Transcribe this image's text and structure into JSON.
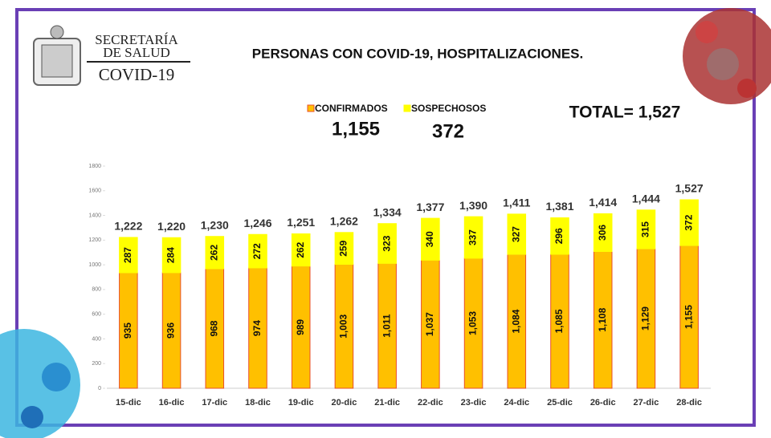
{
  "header": {
    "agency": [
      "SECRETARÍA",
      "DE SALUD"
    ],
    "program": "COVID-19"
  },
  "chart_data": {
    "type": "stacked-bar",
    "title": "PERSONAS CON COVID-19, HOSPITALIZACIONES.",
    "categories": [
      "15-dic",
      "16-dic",
      "17-dic",
      "18-dic",
      "19-dic",
      "20-dic",
      "21-dic",
      "22-dic",
      "23-dic",
      "24-dic",
      "25-dic",
      "26-dic",
      "27-dic",
      "28-dic"
    ],
    "series": [
      {
        "name": "CONFIRMADOS",
        "color": "#FFC000",
        "stroke": "#E8502A",
        "values": [
          935,
          936,
          968,
          974,
          989,
          1003,
          1011,
          1037,
          1053,
          1084,
          1085,
          1108,
          1129,
          1155
        ],
        "value_labels": [
          "935",
          "936",
          "968",
          "974",
          "989",
          "1,003",
          "1,011",
          "1,037",
          "1,053",
          "1,084",
          "1,085",
          "1,108",
          "1,129",
          "1,155"
        ]
      },
      {
        "name": "SOSPECHOSOS",
        "color": "#FFFF00",
        "stroke": "#FFFF00",
        "values": [
          287,
          284,
          262,
          272,
          262,
          259,
          323,
          340,
          337,
          327,
          296,
          306,
          315,
          372
        ]
      }
    ],
    "totals": {
      "values": [
        1222,
        1220,
        1230,
        1246,
        1251,
        1262,
        1334,
        1377,
        1390,
        1411,
        1381,
        1414,
        1444,
        1527
      ],
      "value_labels": [
        "1,222",
        "1,220",
        "1,230",
        "1,246",
        "1,251",
        "1,262",
        "1,334",
        "1,377",
        "1,390",
        "1,411",
        "1,381",
        "1,414",
        "1,444",
        "1,527"
      ]
    },
    "summary": {
      "confirmed": "1,155",
      "suspected": "372",
      "total": "TOTAL= 1,527"
    },
    "ylim": [
      0,
      1800
    ],
    "yticks": [
      0,
      200,
      400,
      600,
      800,
      1000,
      1200,
      1400,
      1600,
      1800
    ]
  }
}
